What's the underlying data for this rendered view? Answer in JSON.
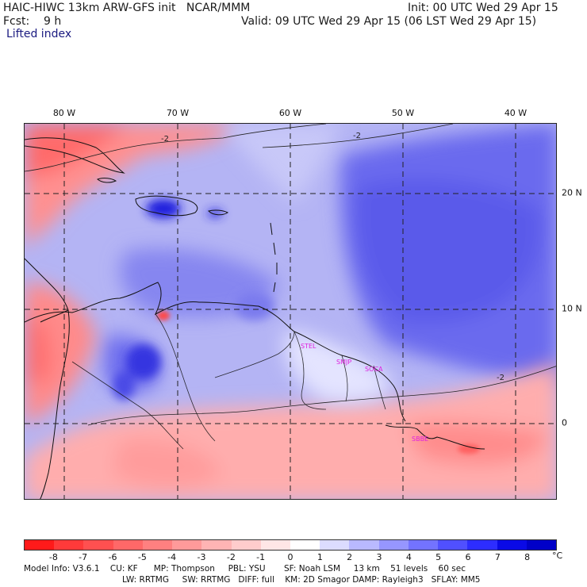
{
  "header": {
    "title_left": "HAIC-HIWC 13km ARW-GFS init   NCAR/MMM",
    "init": "Init: 00 UTC Wed 29 Apr 15",
    "fcst": "Fcst:    9 h",
    "valid": "Valid: 09 UTC Wed 29 Apr 15 (06 LST Wed 29 Apr 15)",
    "field": "Lifted index"
  },
  "map": {
    "longitude_labels": [
      "80 W",
      "70 W",
      "60 W",
      "50 W",
      "40 W"
    ],
    "latitude_labels": [
      "20 N",
      "10 N",
      "0"
    ],
    "contour_labels": [
      "-2",
      "-2",
      "-2"
    ],
    "stations": [
      "STEL",
      "SMJP",
      "SOCA",
      "SBBE"
    ]
  },
  "colorbar": {
    "ticks": [
      "-8",
      "-7",
      "-6",
      "-5",
      "-4",
      "-3",
      "-2",
      "-1",
      "0",
      "1",
      "2",
      "3",
      "4",
      "5",
      "6",
      "7",
      "8"
    ],
    "unit": "°C",
    "colors": [
      "#ff1a1a",
      "#ff3a3a",
      "#ff5050",
      "#ff6868",
      "#ff8080",
      "#ff9a9a",
      "#ffb4b4",
      "#ffcccc",
      "#ffe6e6",
      "#ffffff",
      "#dcdcff",
      "#b9b9ff",
      "#9696ff",
      "#7373ff",
      "#5050ff",
      "#2d2dff",
      "#0a0ae6",
      "#0000c8"
    ]
  },
  "footer": {
    "line1": "Model Info: V3.6.1    CU: KF      MP: Thompson     PBL: YSU       SF: Noah LSM     13 km    51 levels    60 sec",
    "line2": "LW: RRTMG     SW: RRTMG   DIFF: full    KM: 2D Smagor DAMP: Rayleigh3   SFLAY: MM5"
  }
}
